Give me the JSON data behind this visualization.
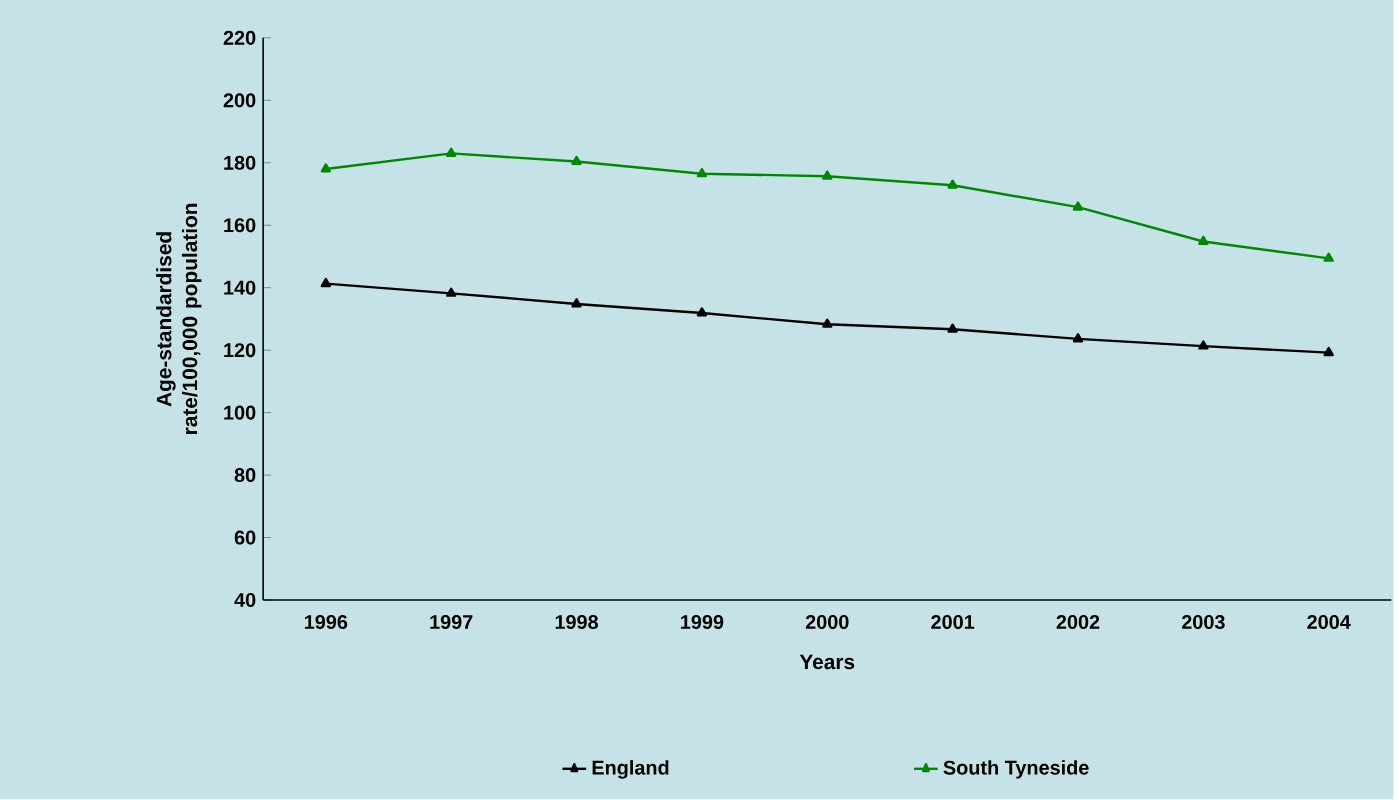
{
  "chart_data": {
    "type": "line",
    "xlabel": "Years",
    "ylabel": "Age-standardised rate/100,000 population",
    "categories": [
      "1996",
      "1997",
      "1998",
      "1999",
      "2000",
      "2001",
      "2002",
      "2003",
      "2004"
    ],
    "series": [
      {
        "name": "England",
        "color": "#000000",
        "values": [
          141.3,
          138.2,
          134.8,
          131.9,
          128.3,
          126.7,
          123.6,
          121.3,
          119.2
        ]
      },
      {
        "name": "South Tyneside",
        "color": "#008800",
        "values": [
          178,
          183,
          180.4,
          176.5,
          175.7,
          172.8,
          165.8,
          154.8,
          149.4
        ]
      }
    ],
    "ylim": [
      40,
      220
    ],
    "yticks": [
      40,
      60,
      80,
      100,
      120,
      140,
      160,
      180,
      200,
      220
    ],
    "grid": false,
    "legend": "bottom",
    "marker": "triangle",
    "line_style": "solid"
  }
}
